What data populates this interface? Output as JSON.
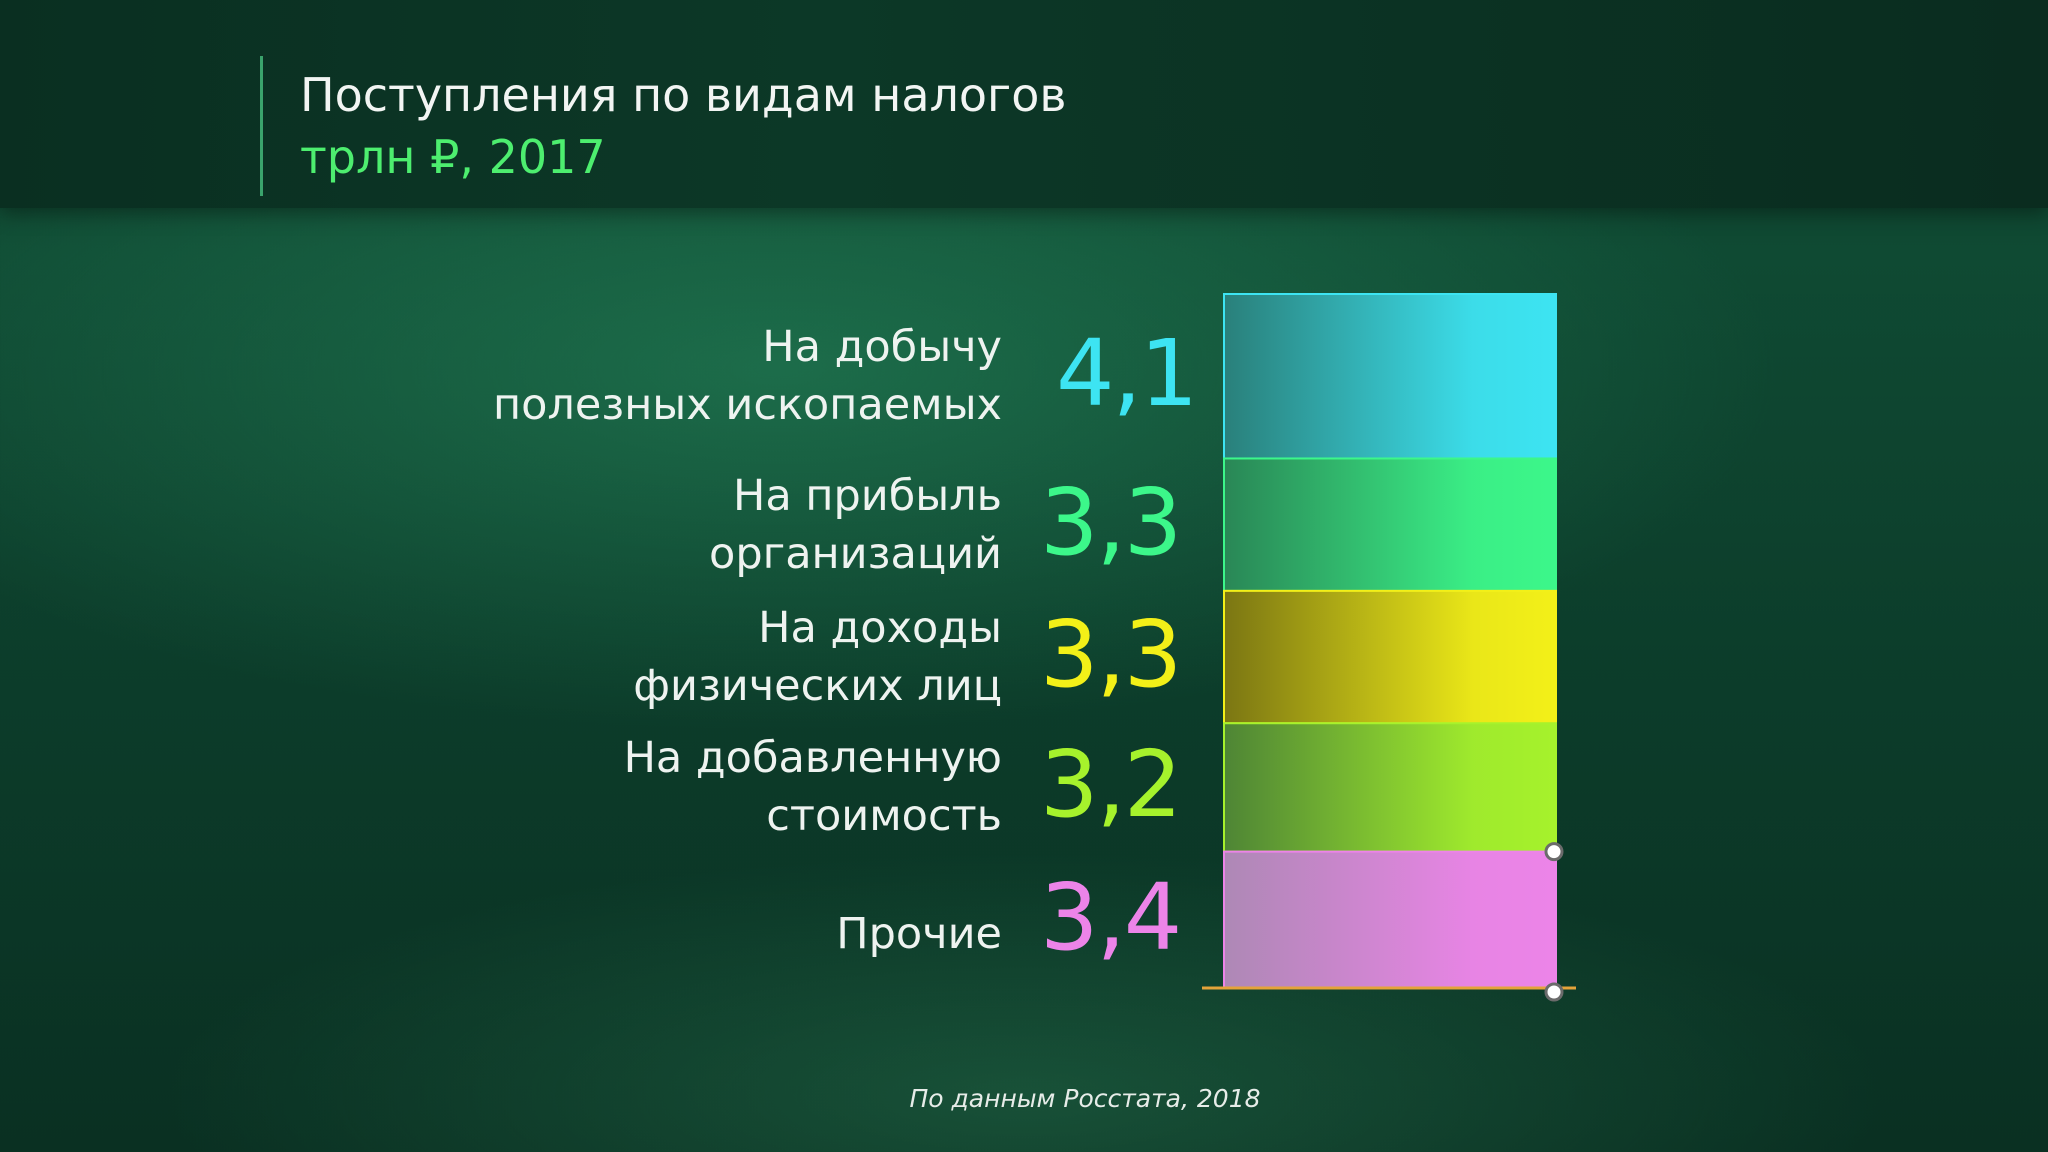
{
  "header": {
    "title": "Поступления по видам налогов",
    "subtitle": "трлн ₽, 2017"
  },
  "chart_data": {
    "type": "bar",
    "stacked": true,
    "orientation": "vertical",
    "title": "Поступления по видам налогов",
    "subtitle": "трлн ₽, 2017",
    "categories": [
      [
        "На добычу",
        "полезных ископаемых"
      ],
      [
        "На прибыль",
        "организаций"
      ],
      [
        "На доходы",
        "физических лиц"
      ],
      [
        "На добавленную",
        "стоимость"
      ],
      [
        "Прочие"
      ]
    ],
    "values": [
      4.1,
      3.3,
      3.3,
      3.2,
      3.4
    ],
    "value_labels": [
      "4,1",
      "3,3",
      "3,3",
      "3,2",
      "3,4"
    ],
    "colors": [
      "#3de4f2",
      "#3cf78a",
      "#f3f018",
      "#a6f22c",
      "#ec84e8"
    ]
  },
  "footer": {
    "source": "По данным Росстата, 2018"
  }
}
